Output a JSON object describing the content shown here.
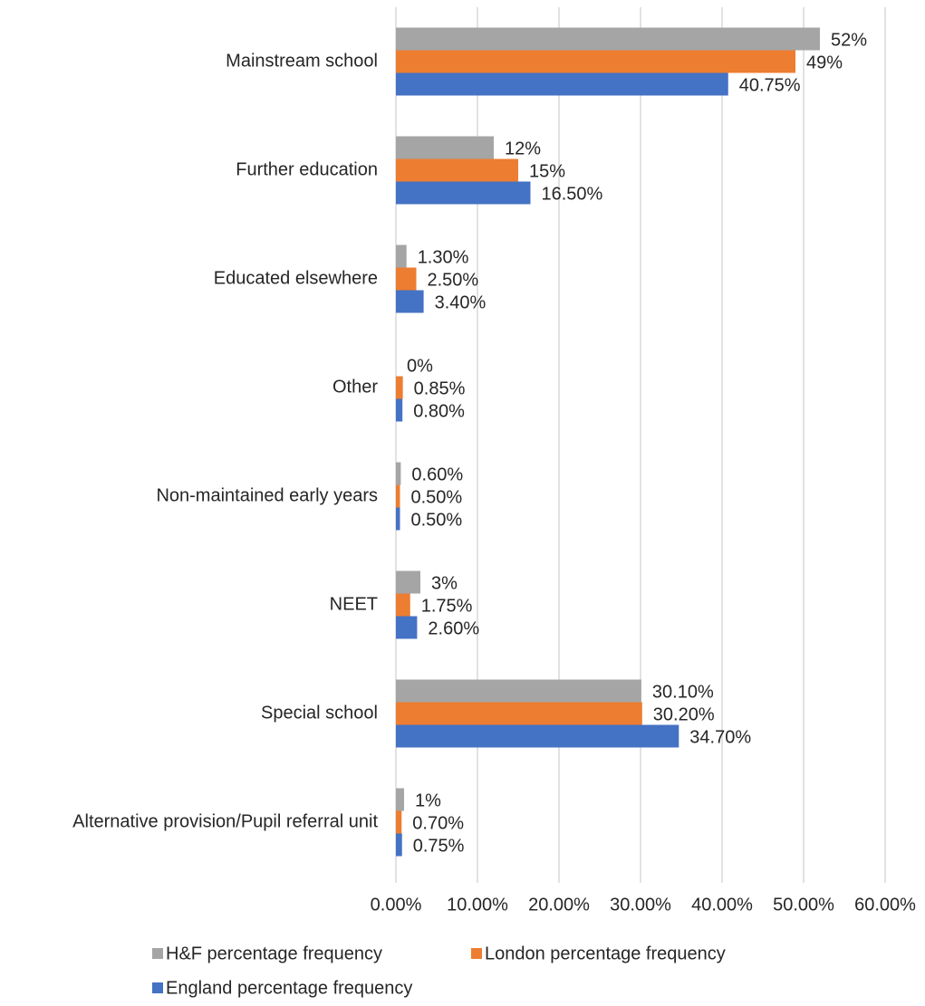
{
  "chart_data": {
    "type": "bar",
    "orientation": "horizontal",
    "categories": [
      "Mainstream school",
      "Further education",
      "Educated elsewhere",
      "Other",
      "Non-maintained early years",
      "NEET",
      "Special school",
      "Alternative provision/Pupil referral unit"
    ],
    "series": [
      {
        "name": "H&F percentage frequency",
        "color": "#a5a5a5",
        "values": [
          52,
          12,
          1.3,
          0,
          0.6,
          3,
          30.1,
          1
        ],
        "value_labels": [
          "52%",
          "12%",
          "1.30%",
          "0%",
          "0.60%",
          "3%",
          "30.10%",
          "1%"
        ]
      },
      {
        "name": "London percentage frequency",
        "color": "#ed7d31",
        "values": [
          49,
          15,
          2.5,
          0.85,
          0.5,
          1.75,
          30.2,
          0.7
        ],
        "value_labels": [
          "49%",
          "15%",
          "2.50%",
          "0.85%",
          "0.50%",
          "1.75%",
          "30.20%",
          "0.70%"
        ]
      },
      {
        "name": "England percentage frequency",
        "color": "#4472c4",
        "values": [
          40.75,
          16.5,
          3.4,
          0.8,
          0.5,
          2.6,
          34.7,
          0.75
        ],
        "value_labels": [
          "40.75%",
          "16.50%",
          "3.40%",
          "0.80%",
          "0.50%",
          "2.60%",
          "34.70%",
          "0.75%"
        ]
      }
    ],
    "xlim": [
      0,
      60
    ],
    "xticks": [
      {
        "value": 0,
        "label": "0.00%"
      },
      {
        "value": 10,
        "label": "10.00%"
      },
      {
        "value": 20,
        "label": "20.00%"
      },
      {
        "value": 30,
        "label": "30.00%"
      },
      {
        "value": 40,
        "label": "40.00%"
      },
      {
        "value": 50,
        "label": "50.00%"
      },
      {
        "value": 60,
        "label": "60.00%"
      }
    ],
    "grid": true,
    "legend": "bottom"
  }
}
